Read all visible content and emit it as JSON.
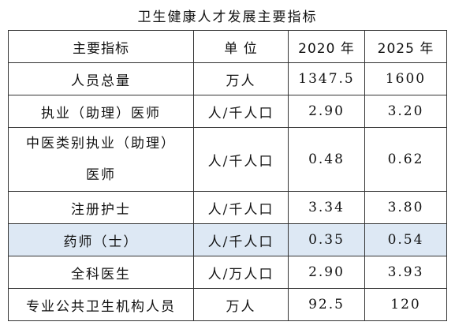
{
  "title": "卫生健康人才发展主要指标",
  "table": {
    "header": [
      "主要指标",
      "单 位",
      "2020 年",
      "2025 年"
    ],
    "rows": [
      [
        "人员总量",
        "万人",
        "1347.5",
        "1600"
      ],
      [
        "执业（助理）医师",
        "人/千人口",
        "2.90",
        "3.20"
      ],
      [
        [
          "中医类别执业（助理）",
          "医师"
        ],
        "人/千人口",
        "0.48",
        "0.62"
      ],
      [
        "注册护士",
        "人/千人口",
        "3.34",
        "3.80"
      ],
      [
        "药师（士）",
        "人/千人口",
        "0.35",
        "0.54"
      ],
      [
        "全科医生",
        "人/万人口",
        "2.90",
        "3.93"
      ],
      [
        "专业公共卫生机构人员",
        "万人",
        "92.5",
        "120"
      ]
    ]
  }
}
